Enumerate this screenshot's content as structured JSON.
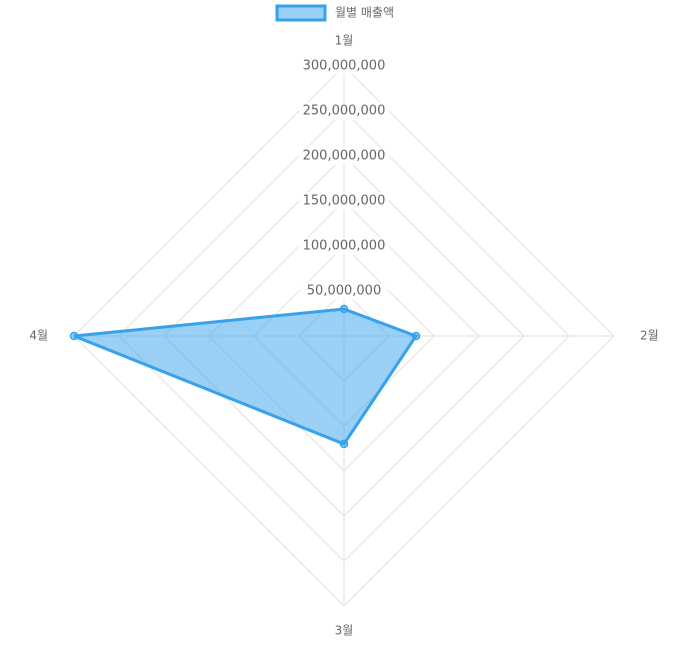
{
  "chart_data": {
    "type": "radar",
    "categories": [
      "1월",
      "2월",
      "3월",
      "4월"
    ],
    "series": [
      {
        "name": "월별 매출액",
        "color": "#36a2eb",
        "values": [
          30000000,
          80000000,
          120000000,
          300000000
        ]
      }
    ],
    "ylim": [
      0,
      300000000
    ],
    "yticks": [
      {
        "value": 50000000,
        "label": "50,000,000"
      },
      {
        "value": 100000000,
        "label": "100,000,000"
      },
      {
        "value": 150000000,
        "label": "150,000,000"
      },
      {
        "value": 200000000,
        "label": "200,000,000"
      },
      {
        "value": 250000000,
        "label": "250,000,000"
      },
      {
        "value": 300000000,
        "label": "300,000,000"
      }
    ],
    "grid": true,
    "legend": "top"
  }
}
